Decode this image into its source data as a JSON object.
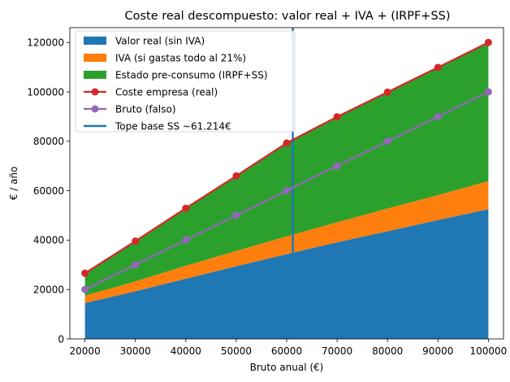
{
  "chart_data": {
    "type": "area",
    "title": "Coste real descompuesto: valor real + IVA + (IRPF+SS)",
    "xlabel": "Bruto anual (€)",
    "ylabel": "€ / año",
    "x": [
      20000,
      30000,
      40000,
      50000,
      60000,
      61214,
      70000,
      80000,
      90000,
      100000
    ],
    "xticks": [
      20000,
      30000,
      40000,
      50000,
      60000,
      70000,
      80000,
      90000,
      100000
    ],
    "yticks": [
      0,
      20000,
      40000,
      60000,
      80000,
      100000,
      120000
    ],
    "xlim": [
      17000,
      103000
    ],
    "ylim": [
      0,
      126000
    ],
    "legend_position": "upper-left",
    "grid": false,
    "stacked_series": [
      {
        "name": "Valor real (sin IVA)",
        "color": "#1f77b4",
        "values": [
          14500,
          19300,
          24400,
          29400,
          34300,
          34900,
          39100,
          43600,
          48100,
          52500
        ]
      },
      {
        "name": "IVA (si gastas todo al 21%)",
        "color": "#ff7f0e",
        "values": [
          3000,
          4000,
          5200,
          6200,
          7200,
          7300,
          8100,
          9200,
          10100,
          11400
        ]
      },
      {
        "name": "Estado pre-consumo (IRPF+SS)",
        "color": "#2ca02c",
        "values": [
          9100,
          16300,
          23300,
          30400,
          37800,
          38800,
          42700,
          47100,
          51700,
          56100
        ]
      }
    ],
    "line_series": [
      {
        "name": "Coste empresa (real)",
        "color": "#d62728",
        "marker": "circle",
        "x": [
          20000,
          30000,
          40000,
          50000,
          60000,
          70000,
          80000,
          90000,
          100000
        ],
        "values": [
          26600,
          39600,
          52900,
          66000,
          79300,
          89900,
          99900,
          109900,
          120000
        ]
      },
      {
        "name": "Bruto (falso)",
        "color": "#9467bd",
        "marker": "circle",
        "x": [
          20000,
          30000,
          40000,
          50000,
          60000,
          70000,
          80000,
          90000,
          100000
        ],
        "values": [
          20000,
          30000,
          40000,
          50000,
          60000,
          70000,
          80000,
          90000,
          100000
        ]
      }
    ],
    "vline": {
      "name": "Tope base SS ~61.214€",
      "x": 61214,
      "color": "#1f77b4"
    }
  }
}
